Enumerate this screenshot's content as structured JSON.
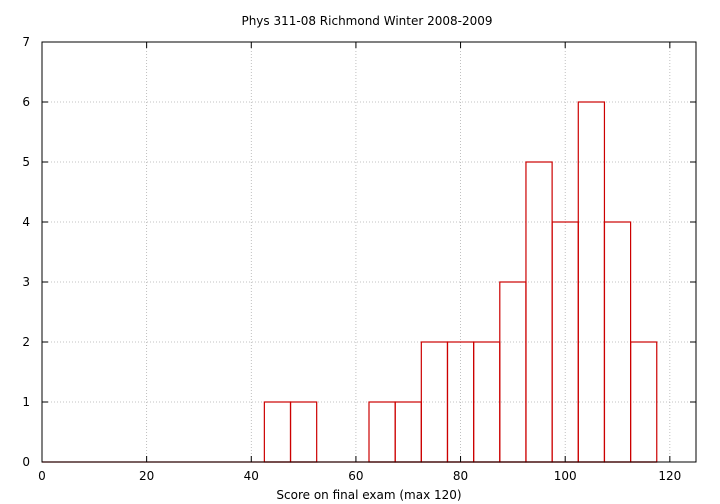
{
  "chart_data": {
    "type": "bar",
    "title": "Phys 311-08 Richmond Winter 2008-2009",
    "xlabel": "Score on final exam (max 120)",
    "ylabel": "",
    "xlim": [
      0,
      125
    ],
    "ylim": [
      0,
      7
    ],
    "bin_width": 5,
    "grid": true,
    "x_ticks": [
      "0",
      "20",
      "40",
      "60",
      "80",
      "100",
      "120"
    ],
    "y_ticks": [
      "0",
      "1",
      "2",
      "3",
      "4",
      "5",
      "6",
      "7"
    ],
    "bars_color": "#cc0000",
    "bins": [
      {
        "x": 45,
        "count": 1
      },
      {
        "x": 50,
        "count": 1
      },
      {
        "x": 65,
        "count": 1
      },
      {
        "x": 70,
        "count": 1
      },
      {
        "x": 75,
        "count": 2
      },
      {
        "x": 80,
        "count": 2
      },
      {
        "x": 85,
        "count": 2
      },
      {
        "x": 90,
        "count": 3
      },
      {
        "x": 95,
        "count": 5
      },
      {
        "x": 100,
        "count": 4
      },
      {
        "x": 105,
        "count": 6
      },
      {
        "x": 110,
        "count": 4
      },
      {
        "x": 115,
        "count": 2
      }
    ]
  }
}
